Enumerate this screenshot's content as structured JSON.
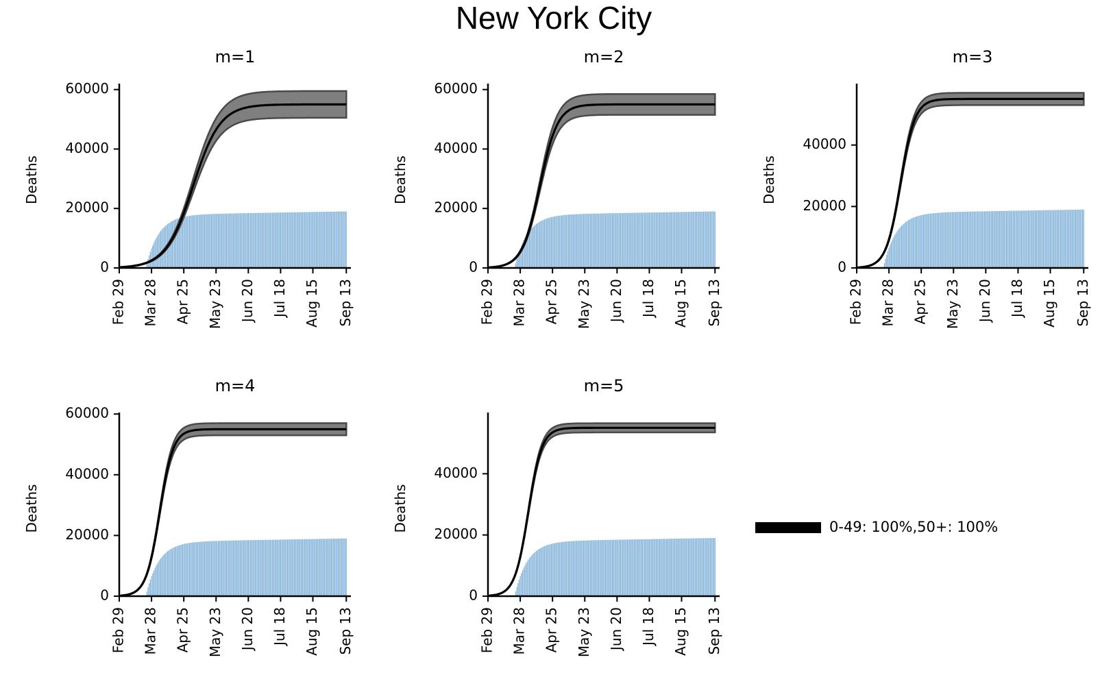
{
  "figure": {
    "title": "New York City"
  },
  "colors": {
    "bars": "#7fb0d8",
    "curve": "#000000",
    "band": "#7f7f7f",
    "band_edge": "#4a4a4a"
  },
  "chart_data": [
    {
      "type": "line+bar",
      "title": "m=1",
      "ylabel": "Deaths",
      "xlabel": "",
      "x_ticks": [
        "Feb 29",
        "Mar 28",
        "Apr 25",
        "May 23",
        "Jun 20",
        "Jul 18",
        "Aug 15",
        "Sep 13"
      ],
      "ylim": [
        0,
        62000
      ],
      "y_ticks": [
        0,
        20000,
        40000,
        60000
      ],
      "grid": false,
      "model_curve": {
        "final": 55000,
        "midpoint_day": 69,
        "steepness": 0.085,
        "band_low_final": 50500,
        "band_high_final": 59500
      },
      "observed_bars": {
        "final": 19000,
        "onset_day": 28,
        "rise_scale": 11
      }
    },
    {
      "type": "line+bar",
      "title": "m=2",
      "ylabel": "Deaths",
      "xlabel": "",
      "x_ticks": [
        "Feb 29",
        "Mar 28",
        "Apr 25",
        "May 23",
        "Jun 20",
        "Jul 18",
        "Aug 15",
        "Sep 13"
      ],
      "ylim": [
        0,
        62000
      ],
      "y_ticks": [
        0,
        20000,
        40000,
        60000
      ],
      "grid": false,
      "model_curve": {
        "final": 55000,
        "midpoint_day": 50,
        "steepness": 0.13,
        "band_low_final": 51500,
        "band_high_final": 58500
      },
      "observed_bars": {
        "final": 19000,
        "onset_day": 28,
        "rise_scale": 11
      }
    },
    {
      "type": "line+bar",
      "title": "m=3",
      "ylabel": "Deaths",
      "xlabel": "",
      "x_ticks": [
        "Feb 29",
        "Mar 28",
        "Apr 25",
        "May 23",
        "Jun 20",
        "Jul 18",
        "Aug 15",
        "Sep 13"
      ],
      "ylim": [
        0,
        60000
      ],
      "y_ticks": [
        0,
        20000,
        40000
      ],
      "grid": false,
      "model_curve": {
        "final": 55000,
        "midpoint_day": 43,
        "steepness": 0.16,
        "band_low_final": 53000,
        "band_high_final": 57000
      },
      "observed_bars": {
        "final": 19000,
        "onset_day": 28,
        "rise_scale": 11
      }
    },
    {
      "type": "line+bar",
      "title": "m=4",
      "ylabel": "Deaths",
      "xlabel": "",
      "x_ticks": [
        "Feb 29",
        "Mar 28",
        "Apr 25",
        "May 23",
        "Jun 20",
        "Jul 18",
        "Aug 15",
        "Sep 13"
      ],
      "ylim": [
        0,
        60500
      ],
      "y_ticks": [
        0,
        20000,
        40000,
        60000
      ],
      "grid": false,
      "model_curve": {
        "final": 55000,
        "midpoint_day": 40,
        "steepness": 0.17,
        "band_low_final": 53000,
        "band_high_final": 57000
      },
      "observed_bars": {
        "final": 19000,
        "onset_day": 28,
        "rise_scale": 11
      }
    },
    {
      "type": "line+bar",
      "title": "m=5",
      "ylabel": "Deaths",
      "xlabel": "",
      "x_ticks": [
        "Feb 29",
        "Mar 28",
        "Apr 25",
        "May 23",
        "Jun 20",
        "Jul 18",
        "Aug 15",
        "Sep 13"
      ],
      "ylim": [
        0,
        60000
      ],
      "y_ticks": [
        0,
        20000,
        40000
      ],
      "grid": false,
      "model_curve": {
        "final": 55000,
        "midpoint_day": 40,
        "steepness": 0.17,
        "band_low_final": 53500,
        "band_high_final": 56500
      },
      "observed_bars": {
        "final": 19000,
        "onset_day": 28,
        "rise_scale": 11
      }
    }
  ],
  "legend": {
    "label": "0-49: 100%,50+: 100%",
    "placement": "right of last row"
  }
}
